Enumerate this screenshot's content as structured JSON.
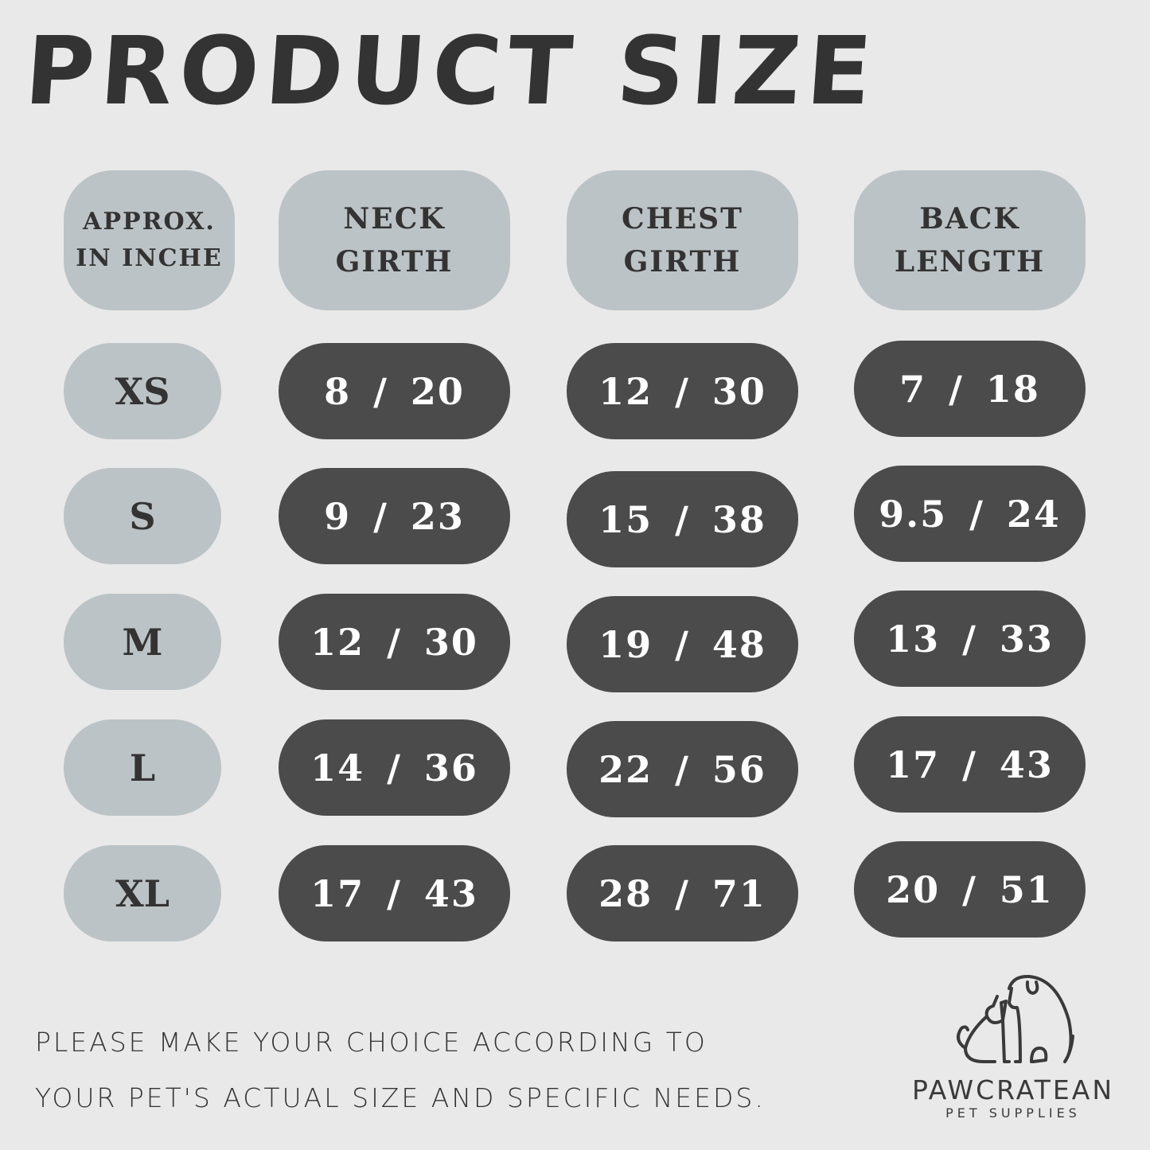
{
  "title": "PRODUCT SIZE",
  "headers": [
    "APPROX. IN INCHE",
    "NECK GIRTH",
    "CHEST GIRTH",
    "BACK LENGTH"
  ],
  "rows": [
    {
      "size": "XS",
      "neck": "8 / 20",
      "chest": "12 / 30",
      "back": "7 / 18"
    },
    {
      "size": "S",
      "neck": "9 / 23",
      "chest": "15 / 38",
      "back": "9.5 / 24"
    },
    {
      "size": "M",
      "neck": "12 / 30",
      "chest": "19 / 48",
      "back": "13 / 33"
    },
    {
      "size": "L",
      "neck": "14 / 36",
      "chest": "22 / 56",
      "back": "17 / 43"
    },
    {
      "size": "XL",
      "neck": "17 / 43",
      "chest": "28 / 71",
      "back": "20 / 51"
    }
  ],
  "note": {
    "line1": "PLEASE MAKE YOUR CHOICE ACCORDING TO",
    "line2": "YOUR PET'S ACTUAL SIZE AND SPECIFIC NEEDS."
  },
  "logo": {
    "brand": "PAWCRATEAN",
    "tagline": "PET SUPPLIES",
    "icon": "dog-and-cat-line-icon"
  },
  "colors": {
    "background": "#e9e9e9",
    "light_pill": "#bcc3c6",
    "dark_pill": "#4b4b4b",
    "text": "#333333"
  }
}
